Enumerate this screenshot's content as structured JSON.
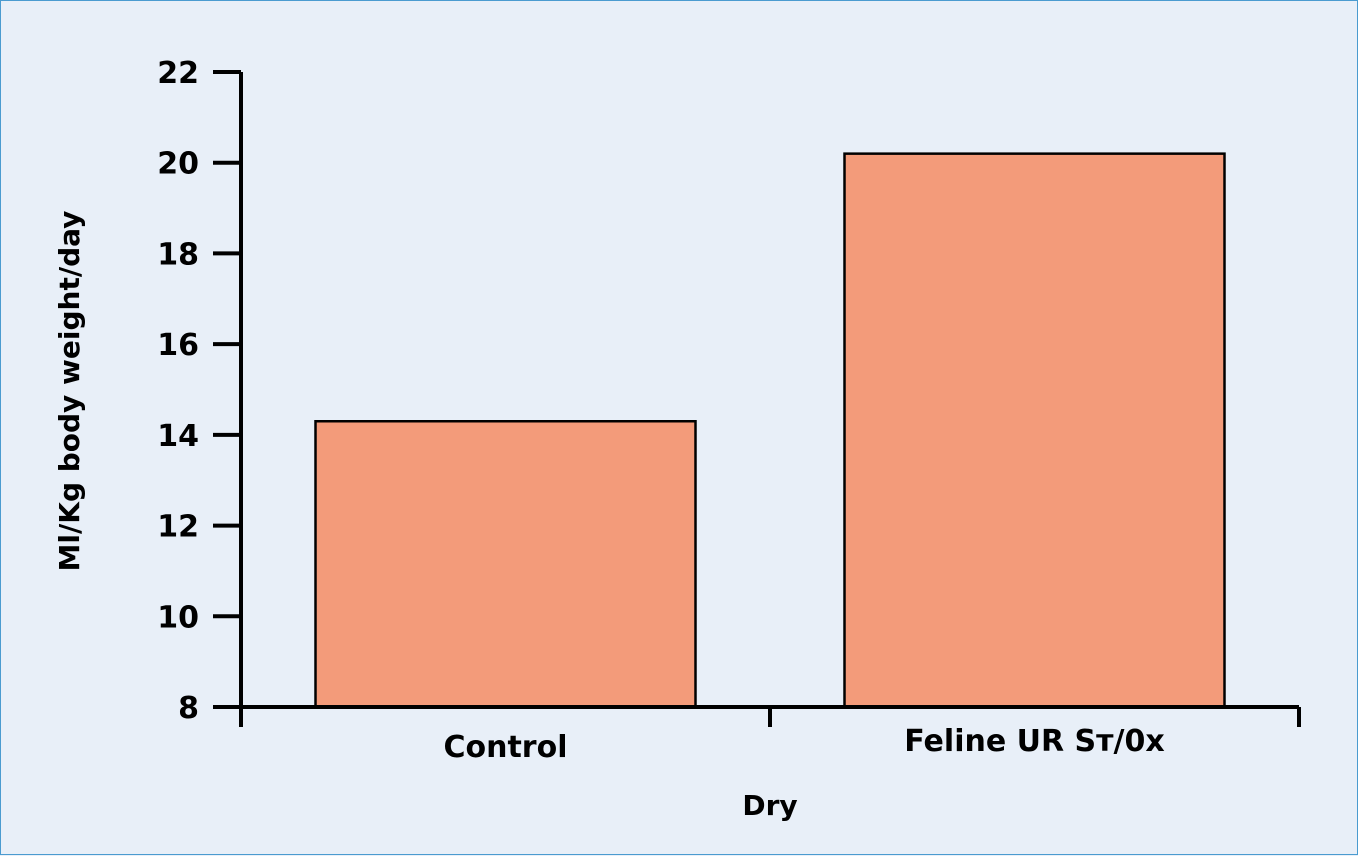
{
  "chart_data": {
    "type": "bar",
    "categories": [
      "Control",
      "Feline UR Sт/0x"
    ],
    "values": [
      14.3,
      20.2
    ],
    "title": "",
    "xlabel": "Dry",
    "ylabel": "Ml/Kg body weight/day",
    "ylim": [
      8,
      22
    ],
    "yticks": [
      8,
      10,
      12,
      14,
      16,
      18,
      20,
      22
    ],
    "ytick_labels": [
      "8",
      "10",
      "12",
      "14",
      "16",
      "18",
      "20",
      "22"
    ],
    "grid": false,
    "legend": "none",
    "bar_color": "#f39b7a",
    "bar_edge_color": "#000000",
    "background_color": "#e8eff8",
    "border_color": "#4a9bd0"
  }
}
